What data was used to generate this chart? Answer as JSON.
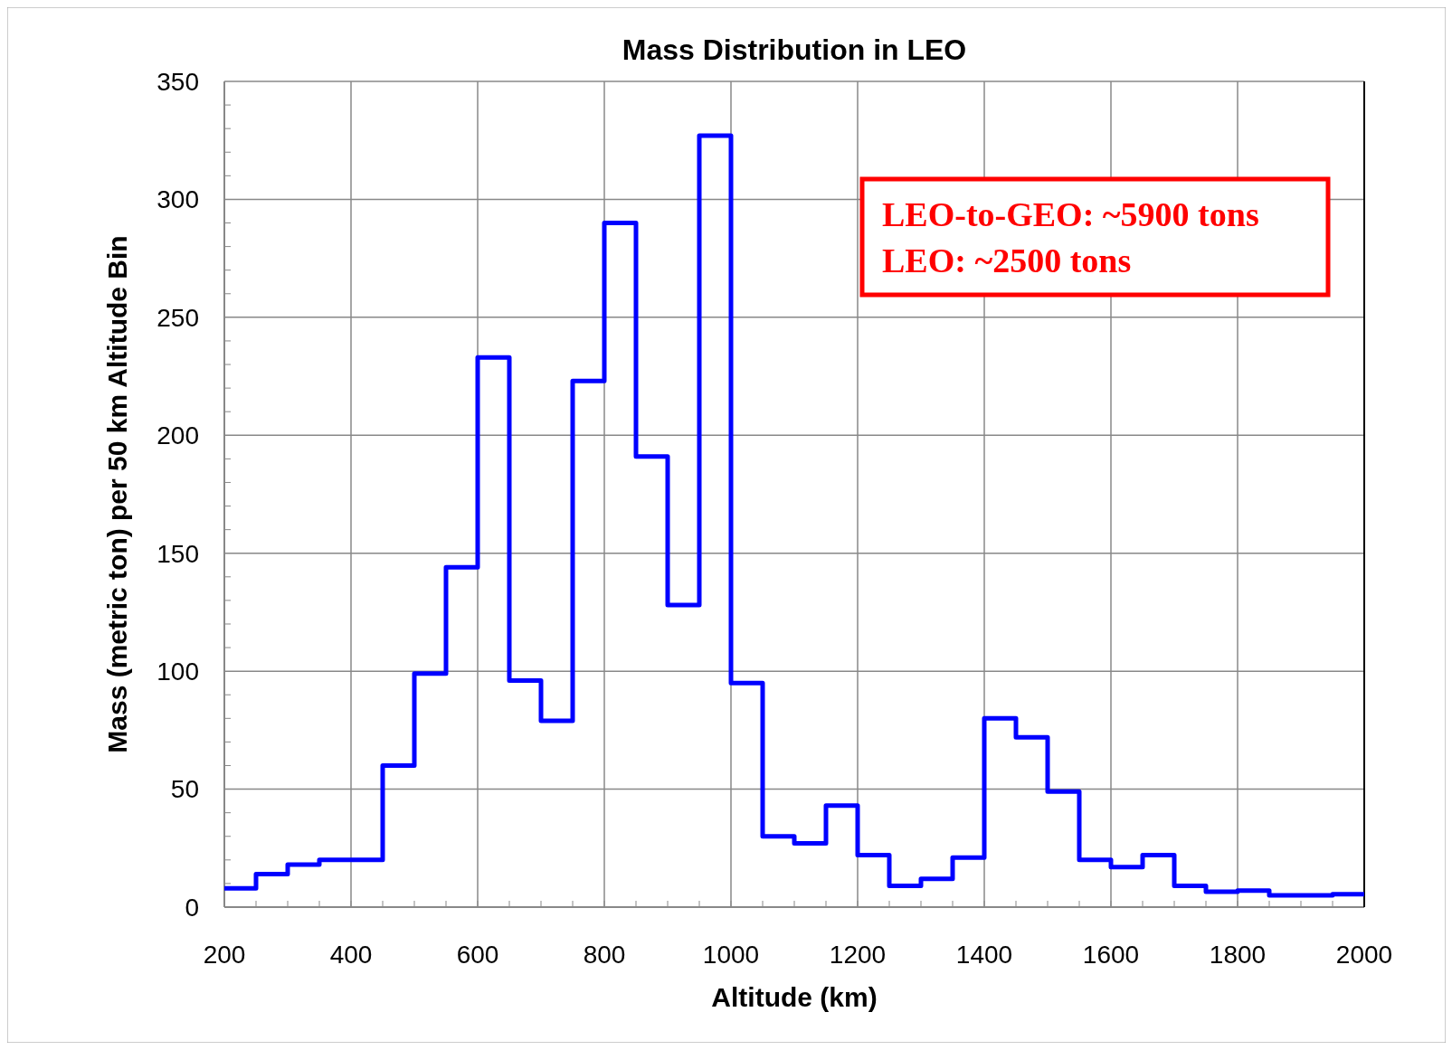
{
  "chart_data": {
    "type": "histogram",
    "title": "Mass Distribution in LEO",
    "xlabel": "Altitude (km)",
    "ylabel": "Mass (metric ton) per 50 km Altitude Bin",
    "bins": [
      200,
      250,
      300,
      350,
      400,
      450,
      500,
      550,
      600,
      650,
      700,
      750,
      800,
      850,
      900,
      950,
      1000,
      1050,
      1100,
      1150,
      1200,
      1250,
      1300,
      1350,
      1400,
      1450,
      1500,
      1550,
      1600,
      1650,
      1700,
      1750,
      1800,
      1850,
      1900,
      1950,
      2000
    ],
    "values": [
      8,
      14,
      18,
      20,
      20,
      60,
      99,
      144,
      233,
      96,
      79,
      223,
      290,
      191,
      128,
      327,
      95,
      30,
      27,
      43,
      22,
      9,
      12,
      21,
      80,
      72,
      49,
      20,
      17,
      22,
      9,
      6.5,
      7,
      5,
      5,
      5.5
    ],
    "color": "#0000ff",
    "xlim": [
      200,
      2000
    ],
    "xticks": [
      200,
      400,
      600,
      800,
      1000,
      1200,
      1400,
      1600,
      1800,
      2000
    ],
    "ylim": [
      0,
      350
    ],
    "yticks": [
      0,
      50,
      100,
      150,
      200,
      250,
      300,
      350
    ],
    "grid": true,
    "annotations": [
      "LEO-to-GEO: ~5900 tons\nLEO: ~2500 tons"
    ]
  }
}
